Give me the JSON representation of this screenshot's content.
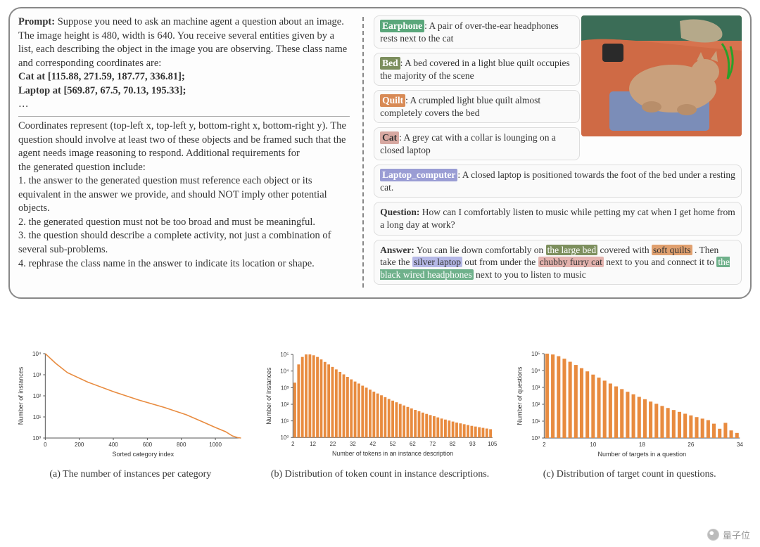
{
  "colors": {
    "earphone": "#5aa77b",
    "bed": "#7d8f5e",
    "quilt": "#d88a55",
    "cat": "#d7a8a1",
    "laptop": "#9a9dd4",
    "hl_bed": "#7d8f5e",
    "hl_quilt": "#e0a06f",
    "hl_laptop": "#b5b8e6",
    "hl_cat": "#e4b3ae",
    "hl_earphone": "#6fb18b",
    "chart_color": "#e88b3f",
    "axis_color": "#555555"
  },
  "prompt": {
    "label": "Prompt:",
    "intro": " Suppose you need to ask an machine agent a question about an image. The image height is 480, width is 640. You receive several entities given by a list, each describing the object in the image you are observing. These class name and corresponding coordinates are:",
    "obj1": "Cat at [115.88, 271.59, 187.77, 336.81];",
    "obj2": "Laptop at [569.87, 67.5, 70.13, 195.33];",
    "dots": "…",
    "coords_line": "Coordinates represent (top-left x, top-left y, bottom-right x, bottom-right y). The question should involve at least two of these objects and be framed such that the agent needs image reasoning to respond. Additional requirements for",
    "req_head": "the generated question include:",
    "r1": "1. the answer to the generated question must reference each object or its equivalent in the answer we provide, and should NOT imply other potential objects.",
    "r2": "2. the generated question must not be too broad and must be meaningful.",
    "r3": "3. the question should describe a complete activity, not just a combination of several sub-problems.",
    "r4": "4. rephrase the class name in the answer to indicate its location or shape."
  },
  "entities": {
    "earphone": {
      "label": "Earphone",
      "text": ": A pair of over-the-ear headphones rests next to the cat"
    },
    "bed": {
      "label": "Bed",
      "text": ": A bed covered in a light blue quilt occupies the majority of the scene"
    },
    "quilt": {
      "label": "Quilt",
      "text": ": A crumpled light blue quilt almost completely covers the bed"
    },
    "cat": {
      "label": "Cat",
      "text": ": A grey cat with a collar is lounging on a closed laptop"
    },
    "laptop": {
      "label": "Laptop_computer",
      "text": ": A closed laptop  is positioned towards the foot of the bed under a resting cat."
    }
  },
  "qa": {
    "q_label": "Question:",
    "q_text": " How can I comfortably listen to music while petting my cat when I get home from a long day at work?",
    "a_label": "Answer:",
    "a_pre": " You can lie down comfortably on ",
    "a_bed": "the large bed",
    "a_mid1": " covered with ",
    "a_quilt": "soft quilts",
    "a_mid2": " . Then take the ",
    "a_laptop": "silver laptop",
    "a_mid3": "  out from under the ",
    "a_cat": "chubby furry cat",
    "a_mid4": "  next to you and connect it to ",
    "a_earphone": "the black wired headphones",
    "a_post": " next to you to listen to music"
  },
  "chartA": {
    "ylabel": "Number of instances",
    "xlabel": "Sorted category index",
    "caption": "(a) The number of instances per category",
    "yticks": [
      "10⁰",
      "10¹",
      "10²",
      "10³",
      "10⁴"
    ],
    "xticks": [
      "0",
      "200",
      "400",
      "600",
      "800",
      "1000"
    ],
    "xmax": 1150,
    "points": [
      [
        0,
        4
      ],
      [
        60,
        3.55
      ],
      [
        130,
        3.1
      ],
      [
        250,
        2.65
      ],
      [
        400,
        2.2
      ],
      [
        550,
        1.8
      ],
      [
        700,
        1.45
      ],
      [
        830,
        1.1
      ],
      [
        930,
        0.75
      ],
      [
        1000,
        0.5
      ],
      [
        1060,
        0.3
      ],
      [
        1100,
        0.1
      ],
      [
        1130,
        0.02
      ],
      [
        1150,
        0
      ]
    ]
  },
  "chartB": {
    "ylabel": "Number of instances",
    "xlabel": "Number of tokens in an instance description",
    "caption": "(b) Distribution of token count in instance descriptions.",
    "yticks": [
      "10⁰",
      "10¹",
      "10²",
      "10³",
      "10⁴",
      "10⁵"
    ],
    "xticks": [
      "2",
      "12",
      "22",
      "32",
      "42",
      "52",
      "62",
      "72",
      "82",
      "93",
      "105"
    ],
    "bars": [
      3.3,
      4.4,
      4.85,
      5.0,
      5.0,
      4.95,
      4.85,
      4.7,
      4.55,
      4.4,
      4.25,
      4.1,
      3.95,
      3.8,
      3.65,
      3.5,
      3.37,
      3.25,
      3.12,
      3.0,
      2.88,
      2.76,
      2.65,
      2.54,
      2.43,
      2.32,
      2.22,
      2.12,
      2.02,
      1.93,
      1.84,
      1.75,
      1.66,
      1.58,
      1.5,
      1.42,
      1.35,
      1.28,
      1.21,
      1.14,
      1.08,
      1.02,
      0.96,
      0.9,
      0.85,
      0.8,
      0.75,
      0.7,
      0.66,
      0.62,
      0.58,
      0.54,
      0.5
    ]
  },
  "chartC": {
    "ylabel": "Number of questions",
    "xlabel": "Number of targets in a question",
    "caption": "(c)  Distribution of target count in questions.",
    "yticks": [
      "10⁰",
      "10¹",
      "10²",
      "10³",
      "10⁴",
      "10⁵"
    ],
    "xticks": [
      "2",
      "10",
      "18",
      "26",
      "34"
    ],
    "bars": [
      5.0,
      4.95,
      4.85,
      4.7,
      4.52,
      4.33,
      4.14,
      3.95,
      3.76,
      3.58,
      3.4,
      3.23,
      3.06,
      2.9,
      2.74,
      2.59,
      2.44,
      2.3,
      2.16,
      2.03,
      1.9,
      1.78,
      1.66,
      1.55,
      1.44,
      1.34,
      1.24,
      1.15,
      1.06,
      0.85,
      0.55,
      0.9,
      0.45,
      0.3
    ]
  },
  "watermark": "量子位"
}
